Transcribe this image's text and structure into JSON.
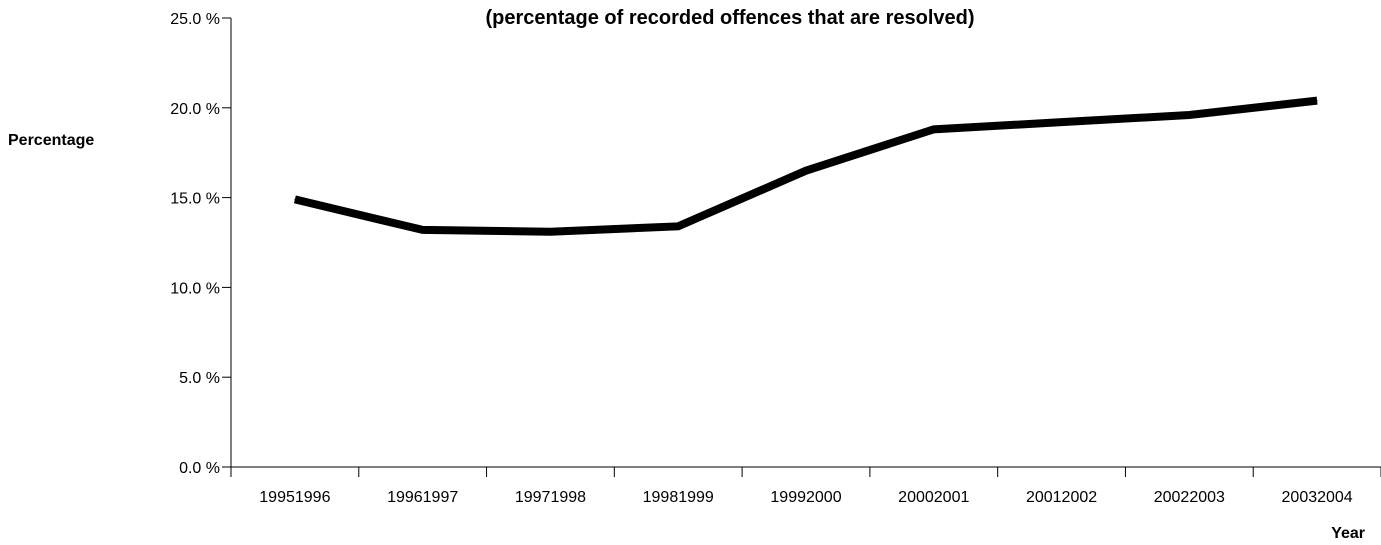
{
  "chart_data": {
    "type": "line",
    "title": "(percentage of recorded offences that are resolved)",
    "xlabel": "Year",
    "ylabel": "Percentage",
    "categories": [
      "19951996",
      "19961997",
      "19971998",
      "19981999",
      "19992000",
      "20002001",
      "20012002",
      "20022003",
      "20032004"
    ],
    "series": [
      {
        "values": [
          14.9,
          13.2,
          13.1,
          13.4,
          16.5,
          18.8,
          19.2,
          19.6,
          20.4
        ],
        "color": "#000000"
      }
    ],
    "ylim": [
      0,
      25
    ],
    "yticks": [
      0,
      5,
      10,
      15,
      20,
      25
    ],
    "ytick_labels": [
      "0.0 %",
      "5.0 %",
      "10.0 %",
      "15.0 %",
      "20.0 %",
      "25.0 %"
    ],
    "grid": false,
    "legend": "none"
  }
}
